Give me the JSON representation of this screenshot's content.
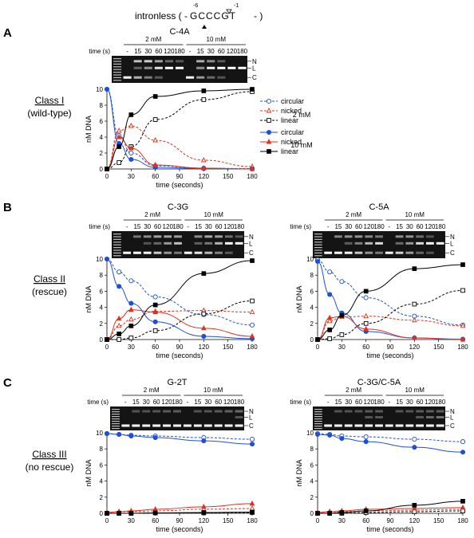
{
  "header": {
    "prefix": "intronless ( -",
    "seq": "GCCCGT",
    "suffix": "- )",
    "pos_left": "-6",
    "pos_right": "-1"
  },
  "gel": {
    "time_label": "time (s)",
    "conc": [
      "2 mM",
      "10 mM"
    ],
    "times": [
      "-",
      "15",
      "30",
      "60",
      "120",
      "180"
    ],
    "bands": [
      "N",
      "L",
      "C"
    ]
  },
  "sections": [
    {
      "letter": "A",
      "class_name": "Class I",
      "class_desc": "(wild-type)"
    },
    {
      "letter": "B",
      "class_name": "Class II",
      "class_desc": "(rescue)"
    },
    {
      "letter": "C",
      "class_name": "Class III",
      "class_desc": "(no rescue)"
    }
  ],
  "legend": {
    "group_2mM": "2 mM",
    "group_10mM": "10 mM",
    "items_2mM": [
      "circular",
      "nicked",
      "linear"
    ],
    "items_10mM": [
      "circular",
      "nicked",
      "linear"
    ]
  },
  "axis": {
    "xlabel": "time (seconds)",
    "ylabel": "nM DNA",
    "xticks": [
      0,
      30,
      60,
      90,
      120,
      150,
      180
    ],
    "yticks": [
      0,
      2,
      4,
      6,
      8,
      10
    ]
  },
  "colors": {
    "circular": "#1f4fd6",
    "nicked": "#e0301e",
    "linear": "#000000"
  },
  "chart_data": [
    {
      "type": "scatter",
      "title": "C-4A",
      "xlabel": "time (seconds)",
      "ylabel": "nM DNA",
      "xlim": [
        0,
        180
      ],
      "ylim": [
        0,
        10
      ],
      "x": [
        0,
        15,
        30,
        60,
        120,
        180
      ],
      "series": [
        {
          "name": "circular 2 mM",
          "values": [
            10,
            4.2,
            2.0,
            0.4,
            0.1,
            0.05
          ]
        },
        {
          "name": "nicked 2 mM",
          "values": [
            0,
            4.8,
            5.4,
            3.6,
            1.1,
            0.3
          ]
        },
        {
          "name": "linear 2 mM",
          "values": [
            0,
            0.8,
            2.8,
            6.2,
            8.7,
            9.7
          ]
        },
        {
          "name": "circular 10 mM",
          "values": [
            10,
            3.2,
            1.2,
            0.2,
            0.05,
            0.0
          ]
        },
        {
          "name": "nicked 10 mM",
          "values": [
            0,
            4.0,
            2.6,
            0.5,
            0.1,
            0.0
          ]
        },
        {
          "name": "linear 10 mM",
          "values": [
            0,
            2.8,
            6.8,
            9.1,
            9.8,
            10.0
          ]
        }
      ]
    },
    {
      "type": "scatter",
      "title": "C-3G",
      "xlabel": "time (seconds)",
      "ylabel": "nM DNA",
      "xlim": [
        0,
        180
      ],
      "ylim": [
        0,
        10
      ],
      "x": [
        0,
        15,
        30,
        60,
        120,
        180
      ],
      "series": [
        {
          "name": "circular 2 mM",
          "values": [
            10,
            8.4,
            7.3,
            5.3,
            3.1,
            1.8
          ]
        },
        {
          "name": "nicked 2 mM",
          "values": [
            0,
            1.7,
            2.5,
            3.5,
            3.6,
            3.4
          ]
        },
        {
          "name": "linear 2 mM",
          "values": [
            0,
            0.0,
            0.2,
            1.1,
            3.2,
            4.8
          ]
        },
        {
          "name": "circular 10 mM",
          "values": [
            10,
            6.6,
            4.5,
            2.2,
            0.4,
            0.1
          ]
        },
        {
          "name": "nicked 10 mM",
          "values": [
            0,
            2.6,
            3.7,
            3.4,
            1.4,
            0.4
          ]
        },
        {
          "name": "linear 10 mM",
          "values": [
            0,
            0.7,
            1.7,
            4.3,
            8.2,
            9.8
          ]
        }
      ]
    },
    {
      "type": "scatter",
      "title": "C-5A",
      "xlabel": "time (seconds)",
      "ylabel": "nM DNA",
      "xlim": [
        0,
        180
      ],
      "ylim": [
        0,
        10
      ],
      "x": [
        0,
        15,
        30,
        60,
        120,
        180
      ],
      "series": [
        {
          "name": "circular 2 mM",
          "values": [
            9.9,
            8.4,
            7.2,
            5.2,
            2.9,
            1.8
          ]
        },
        {
          "name": "nicked 2 mM",
          "values": [
            0,
            2.3,
            2.8,
            2.9,
            2.4,
            1.7
          ]
        },
        {
          "name": "linear 2 mM",
          "values": [
            0,
            0.1,
            0.6,
            2.0,
            4.4,
            6.1
          ]
        },
        {
          "name": "circular 10 mM",
          "values": [
            9.7,
            5.6,
            3.3,
            1.0,
            0.2,
            0.05
          ]
        },
        {
          "name": "nicked 10 mM",
          "values": [
            0,
            2.7,
            2.9,
            1.3,
            0.2,
            0.0
          ]
        },
        {
          "name": "linear 10 mM",
          "values": [
            0,
            1.2,
            3.0,
            6.0,
            8.8,
            9.3
          ]
        }
      ]
    },
    {
      "type": "scatter",
      "title": "G-2T",
      "xlabel": "time (seconds)",
      "ylabel": "nM DNA",
      "xlim": [
        0,
        180
      ],
      "ylim": [
        0,
        10
      ],
      "x": [
        0,
        15,
        30,
        60,
        120,
        180
      ],
      "series": [
        {
          "name": "circular 2 mM",
          "values": [
            9.9,
            9.8,
            9.7,
            9.6,
            9.4,
            9.2
          ]
        },
        {
          "name": "nicked 2 mM",
          "values": [
            0.1,
            0.2,
            0.2,
            0.3,
            0.5,
            0.6
          ]
        },
        {
          "name": "linear 2 mM",
          "values": [
            0,
            0,
            0,
            0.05,
            0.05,
            0.1
          ]
        },
        {
          "name": "circular 10 mM",
          "values": [
            9.9,
            9.8,
            9.6,
            9.4,
            9.0,
            8.6
          ]
        },
        {
          "name": "nicked 10 mM",
          "values": [
            0.1,
            0.2,
            0.3,
            0.5,
            0.8,
            1.2
          ]
        },
        {
          "name": "linear 10 mM",
          "values": [
            0,
            0,
            0,
            0.05,
            0.1,
            0.15
          ]
        }
      ]
    },
    {
      "type": "scatter",
      "title": "C-3G/C-5A",
      "xlabel": "time (seconds)",
      "ylabel": "nM DNA",
      "xlim": [
        0,
        180
      ],
      "ylim": [
        0,
        10
      ],
      "x": [
        0,
        15,
        30,
        60,
        120,
        180
      ],
      "series": [
        {
          "name": "circular 2 mM",
          "values": [
            9.9,
            9.8,
            9.6,
            9.5,
            9.2,
            8.9
          ]
        },
        {
          "name": "nicked 2 mM",
          "values": [
            0.1,
            0.2,
            0.2,
            0.3,
            0.4,
            0.5
          ]
        },
        {
          "name": "linear 2 mM",
          "values": [
            0,
            0,
            0,
            0.1,
            0.2,
            0.3
          ]
        },
        {
          "name": "circular 10 mM",
          "values": [
            9.8,
            9.7,
            9.3,
            8.9,
            8.2,
            7.6
          ]
        },
        {
          "name": "nicked 10 mM",
          "values": [
            0.1,
            0.2,
            0.3,
            0.5,
            0.6,
            0.7
          ]
        },
        {
          "name": "linear 10 mM",
          "values": [
            0,
            0,
            0.1,
            0.3,
            1.0,
            1.5
          ]
        }
      ]
    }
  ]
}
